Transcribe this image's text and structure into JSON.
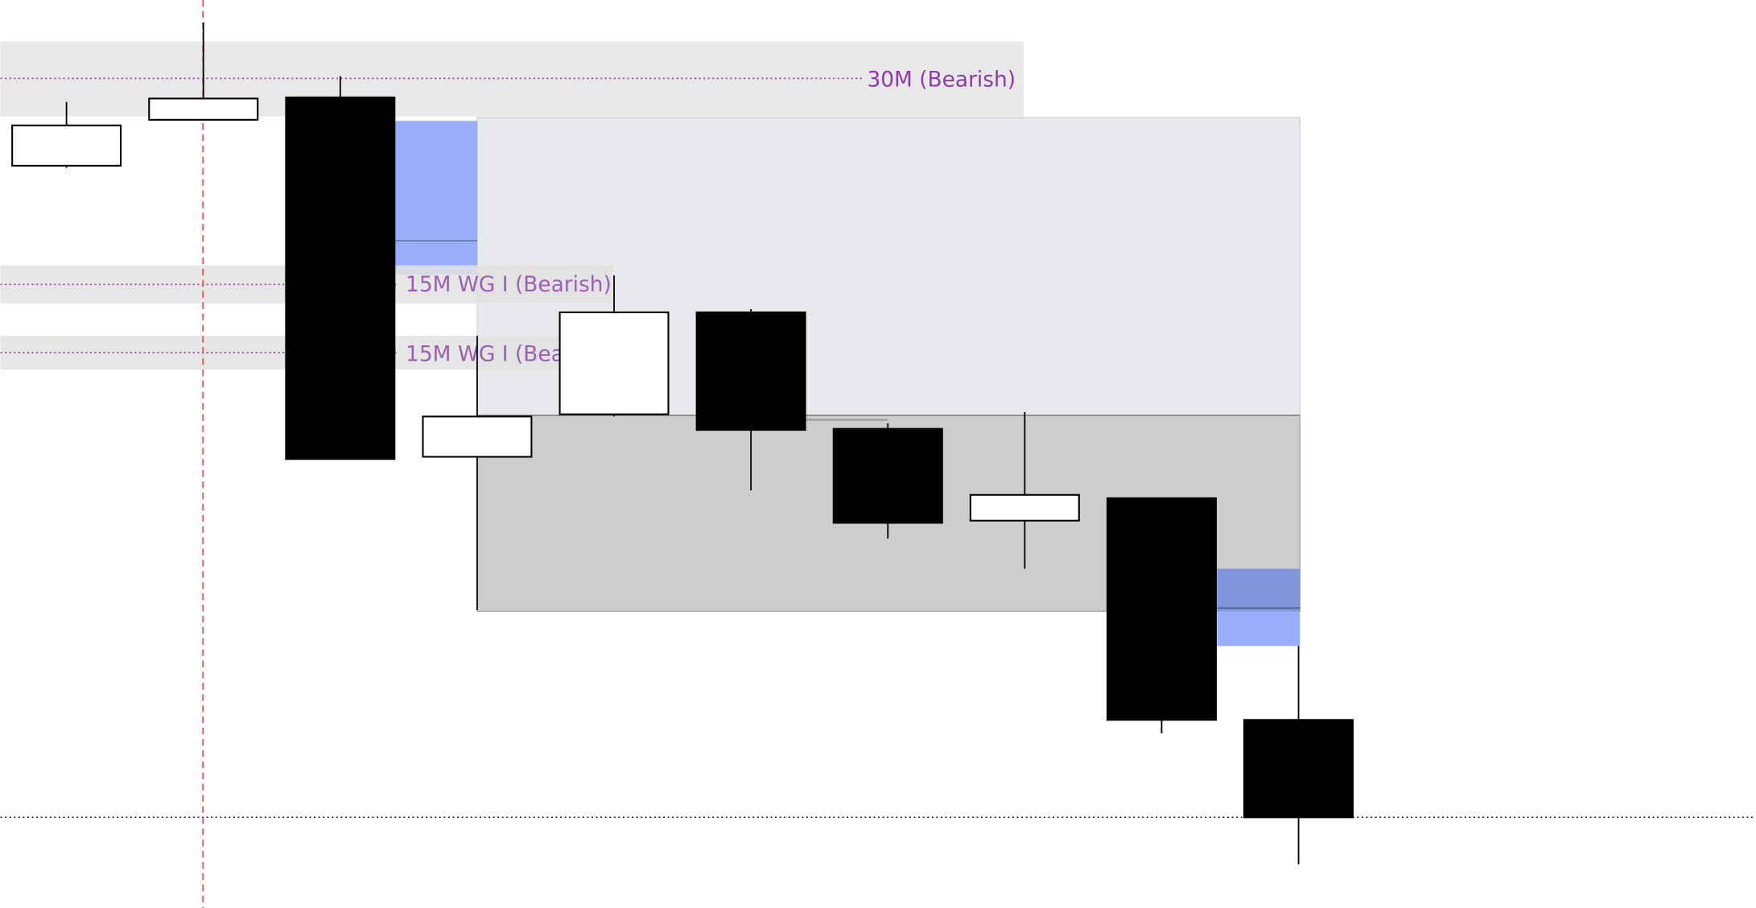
{
  "chart_data": {
    "type": "candlestick",
    "annotations": [
      "30M (Bearish)",
      "15M WG I (Bearish)",
      "15M WG I (Bea"
    ],
    "series": [
      {
        "open": [
          663,
          704,
          724,
          403,
          441,
          532,
          428,
          346,
          366,
          168
        ],
        "high": [
          720,
          791,
          743,
          511,
          565,
          535,
          433,
          443,
          366,
          234
        ],
        "low": [
          661,
          704,
          401,
          266,
          439,
          373,
          330,
          303,
          156,
          39
        ],
        "close": [
          699,
          723,
          401,
          439,
          532,
          427,
          344,
          369,
          168,
          81
        ]
      }
    ],
    "up_color": "#ffffff",
    "down_color": "#000000",
    "ylim": [
      0,
      811
    ]
  }
}
